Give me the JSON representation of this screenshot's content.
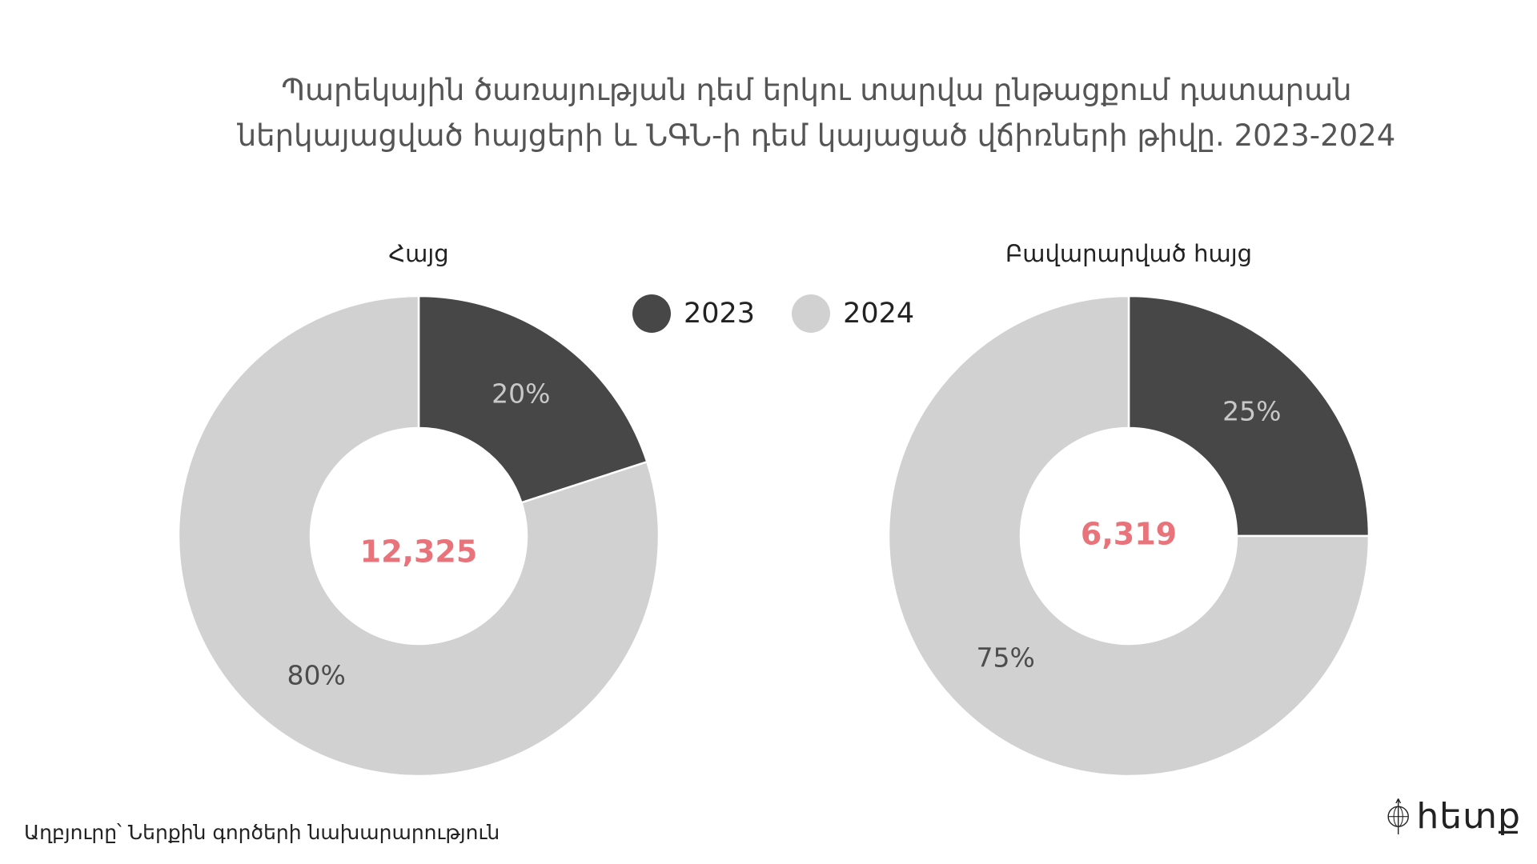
{
  "title_lines": [
    "Պարեկային ծառայության դեմ երկու տարվա ընթացքում դատարան",
    "ներկայացված հայցերի և ՆԳՆ-ի դեմ կայացած վճիռների թիվը. 2023-2024"
  ],
  "legend": [
    {
      "label": "2023",
      "color": "#474747"
    },
    {
      "label": "2024",
      "color": "#d1d1d1"
    }
  ],
  "chart_data": [
    {
      "type": "pie",
      "title": "Հայց",
      "total_label": "12,325",
      "categories": [
        "2023",
        "2024"
      ],
      "values": [
        20,
        80
      ],
      "value_labels": [
        "20%",
        "80%"
      ],
      "colors": [
        "#474747",
        "#d1d1d1"
      ]
    },
    {
      "type": "pie",
      "title": "Բավարարված հայց",
      "total_label": "6,319",
      "categories": [
        "2023",
        "2024"
      ],
      "values": [
        25,
        75
      ],
      "value_labels": [
        "25%",
        "75%"
      ],
      "colors": [
        "#474747",
        "#d1d1d1"
      ]
    }
  ],
  "center_color": "#e8737a",
  "source": "Աղբյուրը՝ Ներքին գործերի նախարարություն",
  "logo": {
    "text": "hետք",
    "icon": "compass-globe-icon"
  }
}
